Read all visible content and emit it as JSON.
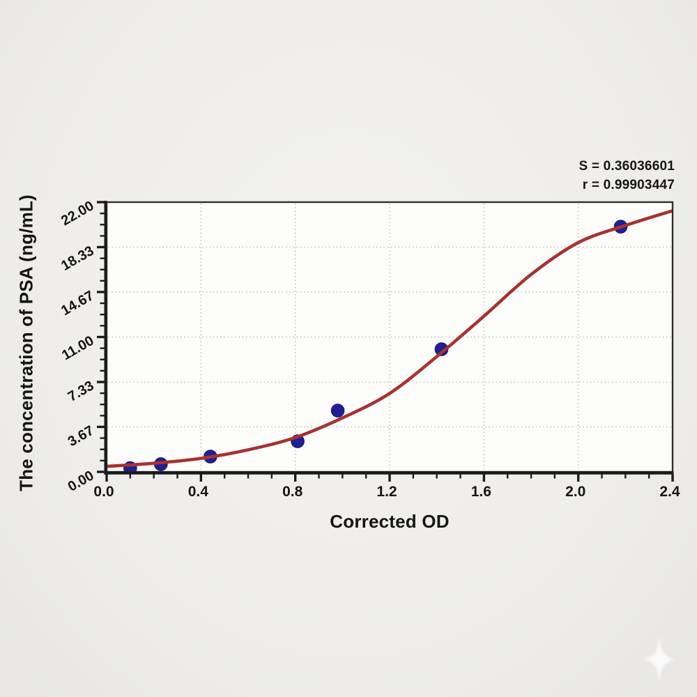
{
  "page": {
    "background": "#efeeec",
    "watermark_icon": "sparkle-icon"
  },
  "chart_data": {
    "type": "scatter",
    "title": "",
    "xlabel": "Corrected OD",
    "ylabel": "The concentration of PSA (ng/mL)",
    "xlim": [
      0,
      2.4
    ],
    "ylim": [
      0,
      22
    ],
    "grid": true,
    "legend_position": "none",
    "x_ticks": [
      {
        "value": 0.0,
        "label": "0.0"
      },
      {
        "value": 0.4,
        "label": "0.4"
      },
      {
        "value": 0.8,
        "label": "0.8"
      },
      {
        "value": 1.2,
        "label": "1.2"
      },
      {
        "value": 1.6,
        "label": "1.6"
      },
      {
        "value": 2.0,
        "label": "2.0"
      },
      {
        "value": 2.4,
        "label": "2.4"
      }
    ],
    "y_ticks": [
      {
        "value": 0.0,
        "label": "0.00"
      },
      {
        "value": 3.67,
        "label": "3.67"
      },
      {
        "value": 7.33,
        "label": "7.33"
      },
      {
        "value": 11.0,
        "label": "11.00"
      },
      {
        "value": 14.67,
        "label": "14.67"
      },
      {
        "value": 18.33,
        "label": "18.33"
      },
      {
        "value": 22.0,
        "label": "22.00"
      }
    ],
    "x_minor_divisions": 4,
    "y_minor_divisions": 4,
    "series": [
      {
        "name": "standard-points",
        "type": "scatter",
        "color": "#201f96",
        "points": [
          [
            0.1,
            0.31
          ],
          [
            0.23,
            0.63
          ],
          [
            0.44,
            1.25
          ],
          [
            0.81,
            2.5
          ],
          [
            0.98,
            5.0
          ],
          [
            1.42,
            10.0
          ],
          [
            2.18,
            20.0
          ]
        ]
      },
      {
        "name": "fit-curve",
        "type": "line",
        "color": "#a63230",
        "points": [
          [
            0,
            0.45
          ],
          [
            0.2,
            0.7
          ],
          [
            0.4,
            1.1
          ],
          [
            0.6,
            1.8
          ],
          [
            0.8,
            2.8
          ],
          [
            1.0,
            4.4
          ],
          [
            1.2,
            6.4
          ],
          [
            1.4,
            9.4
          ],
          [
            1.6,
            12.7
          ],
          [
            1.8,
            16.1
          ],
          [
            2.0,
            18.7
          ],
          [
            2.2,
            20.1
          ],
          [
            2.4,
            21.3
          ]
        ]
      }
    ],
    "annotations": [
      {
        "text": "S = 0.36036601"
      },
      {
        "text": "r = 0.99903447"
      }
    ]
  },
  "colors": {
    "axis": "#1b1b1b",
    "frame": "#2e2e2e",
    "grid": "#c3c3c3",
    "plot_bg": "#fcfcfb",
    "text": "#151515",
    "curve": "#a63230",
    "marker": "#201f96",
    "marker_edge": "#14136b"
  }
}
